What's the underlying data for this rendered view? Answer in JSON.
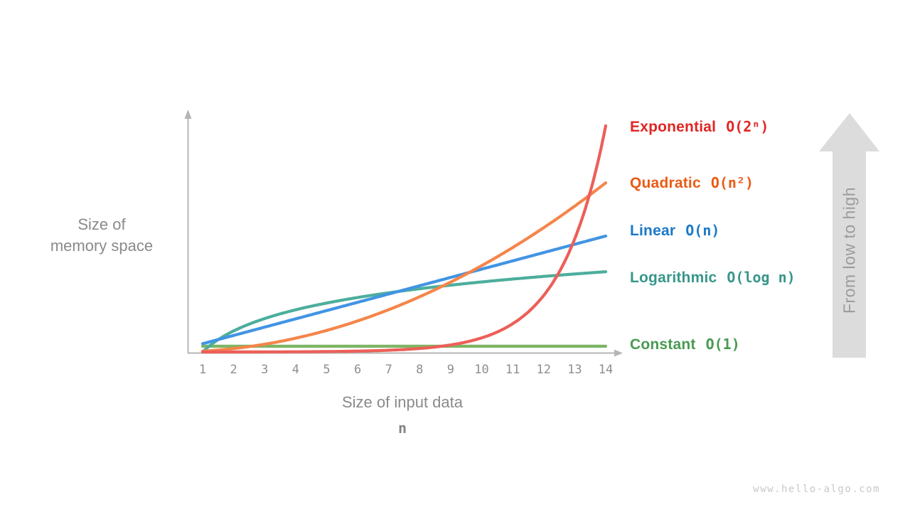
{
  "page": {
    "background": "#ffffff",
    "watermark": "www.hello-algo.com"
  },
  "arrow": {
    "label": "From low to high",
    "fill_color": "#dcdcdc",
    "text_color": "#9c9c9c"
  },
  "chart_data": {
    "type": "line",
    "title": "",
    "xlabel": "Size of input data",
    "xlabel_symbol": "n",
    "ylabel_lines": [
      "Size of",
      "memory space"
    ],
    "x_ticks": [
      "1",
      "2",
      "3",
      "4",
      "5",
      "6",
      "7",
      "8",
      "9",
      "10",
      "11",
      "12",
      "13",
      "14"
    ],
    "x_range": [
      1,
      14
    ],
    "grid": false,
    "legend_position": "right-of-plot",
    "axis_color": "#b5b5b5",
    "tick_text_color": "#8e8e8e",
    "series": [
      {
        "name": "Constant",
        "formula": "O(1)",
        "fn": "1",
        "curve_color": "#7eb564",
        "label_color": "#499a51",
        "display_peak_fraction": 0.024,
        "values": [
          1,
          1,
          1,
          1,
          1,
          1,
          1,
          1,
          1,
          1,
          1,
          1,
          1,
          1
        ]
      },
      {
        "name": "Logarithmic",
        "formula": "O(log n)",
        "fn": "log2(n)",
        "curve_color": "#4cae9c",
        "label_color": "#38968a",
        "display_peak_fraction": 0.335,
        "values": [
          0,
          1,
          1.58,
          2,
          2.32,
          2.58,
          2.81,
          3,
          3.17,
          3.32,
          3.46,
          3.58,
          3.7,
          3.81
        ]
      },
      {
        "name": "Linear",
        "formula": "O(n)",
        "fn": "n",
        "curve_color": "#4294e4",
        "label_color": "#1a79c7",
        "display_peak_fraction": 0.484,
        "values": [
          1,
          2,
          3,
          4,
          5,
          6,
          7,
          8,
          9,
          10,
          11,
          12,
          13,
          14
        ]
      },
      {
        "name": "Quadratic",
        "formula": "O(n²)",
        "fn": "n^2",
        "curve_color": "#f5854a",
        "label_color": "#ea5a14",
        "display_peak_fraction": 0.706,
        "values": [
          1,
          4,
          9,
          16,
          25,
          36,
          49,
          64,
          81,
          100,
          121,
          144,
          169,
          196
        ]
      },
      {
        "name": "Exponential",
        "formula": "O(2ⁿ)",
        "fn": "2^n",
        "curve_color": "#ec5f58",
        "label_color": "#e02624",
        "display_peak_fraction": 0.944,
        "values": [
          2,
          4,
          8,
          16,
          32,
          64,
          128,
          256,
          512,
          1024,
          2048,
          4096,
          8192,
          16384
        ]
      }
    ],
    "legend_order_top_to_bottom": [
      "Exponential",
      "Quadratic",
      "Linear",
      "Logarithmic",
      "Constant"
    ]
  }
}
